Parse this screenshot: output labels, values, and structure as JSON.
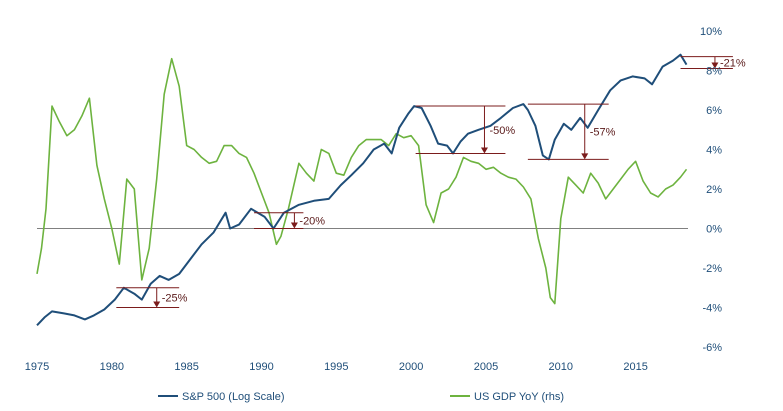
{
  "chart_data": {
    "type": "line",
    "x_range": [
      1975,
      2018.5
    ],
    "x_ticks": [
      "1975",
      "1980",
      "1985",
      "1990",
      "1995",
      "2000",
      "2005",
      "2010",
      "2015"
    ],
    "y2_label_suffix": "%",
    "y2_ticks": [
      "10%",
      "8%",
      "6%",
      "4%",
      "2%",
      "0%",
      "-2%",
      "-4%",
      "-6%"
    ],
    "y2_lim": [
      -6,
      10
    ],
    "colors": {
      "sp500": "#1f4e79",
      "gdp": "#6db33f",
      "annotation": "#7b1c1c",
      "zero": "#808080"
    },
    "series": [
      {
        "name": "S&P 500 (Log Scale)",
        "x": [
          1975.0,
          1975.5,
          1976.0,
          1976.8,
          1977.5,
          1978.2,
          1978.8,
          1979.5,
          1980.2,
          1980.8,
          1981.5,
          1982.0,
          1982.6,
          1983.2,
          1983.8,
          1984.5,
          1985.2,
          1986.0,
          1986.8,
          1987.6,
          1987.9,
          1988.5,
          1989.3,
          1990.2,
          1990.8,
          1991.5,
          1992.5,
          1993.5,
          1994.5,
          1995.3,
          1996.0,
          1996.8,
          1997.5,
          1998.2,
          1998.7,
          1999.2,
          1999.8,
          2000.2,
          2000.7,
          2001.3,
          2001.8,
          2002.4,
          2002.8,
          2003.3,
          2003.8,
          2004.5,
          2005.3,
          2006.0,
          2006.8,
          2007.5,
          2007.8,
          2008.3,
          2008.8,
          2009.2,
          2009.6,
          2010.2,
          2010.7,
          2011.3,
          2011.8,
          2012.5,
          2013.3,
          2014.0,
          2014.8,
          2015.6,
          2016.1,
          2016.8,
          2017.5,
          2018.0,
          2018.4
        ],
        "values": [
          -4.9,
          -4.5,
          -4.2,
          -4.3,
          -4.4,
          -4.6,
          -4.4,
          -4.1,
          -3.6,
          -3.0,
          -3.3,
          -3.6,
          -2.8,
          -2.4,
          -2.6,
          -2.3,
          -1.6,
          -0.8,
          -0.2,
          0.8,
          0.0,
          0.2,
          1.0,
          0.6,
          0.0,
          0.8,
          1.2,
          1.4,
          1.5,
          2.2,
          2.7,
          3.3,
          4.0,
          4.3,
          3.8,
          5.1,
          5.8,
          6.2,
          6.1,
          5.2,
          4.3,
          4.2,
          3.8,
          4.4,
          4.8,
          5.0,
          5.2,
          5.6,
          6.1,
          6.3,
          6.0,
          5.2,
          3.7,
          3.5,
          4.5,
          5.3,
          5.0,
          5.6,
          5.1,
          6.0,
          7.0,
          7.5,
          7.7,
          7.6,
          7.3,
          8.2,
          8.5,
          8.8,
          8.3
        ]
      },
      {
        "name": "US GDP YoY (rhs)",
        "x": [
          1975.0,
          1975.3,
          1975.6,
          1976.0,
          1976.5,
          1977.0,
          1977.5,
          1978.0,
          1978.5,
          1979.0,
          1979.5,
          1980.0,
          1980.5,
          1981.0,
          1981.5,
          1982.0,
          1982.5,
          1983.0,
          1983.5,
          1984.0,
          1984.5,
          1985.0,
          1985.5,
          1986.0,
          1986.5,
          1987.0,
          1987.5,
          1988.0,
          1988.5,
          1989.0,
          1989.5,
          1990.0,
          1990.5,
          1991.0,
          1991.3,
          1991.8,
          1992.5,
          1993.0,
          1993.5,
          1994.0,
          1994.5,
          1995.0,
          1995.5,
          1996.0,
          1996.5,
          1997.0,
          1997.5,
          1998.0,
          1998.5,
          1999.0,
          1999.5,
          2000.0,
          2000.5,
          2001.0,
          2001.5,
          2002.0,
          2002.5,
          2003.0,
          2003.5,
          2004.0,
          2004.5,
          2005.0,
          2005.5,
          2006.0,
          2006.5,
          2007.0,
          2007.5,
          2008.0,
          2008.5,
          2009.0,
          2009.3,
          2009.6,
          2010.0,
          2010.5,
          2011.0,
          2011.5,
          2012.0,
          2012.5,
          2013.0,
          2013.5,
          2014.0,
          2014.5,
          2015.0,
          2015.5,
          2016.0,
          2016.5,
          2017.0,
          2017.5,
          2018.0,
          2018.4
        ],
        "values": [
          -2.3,
          -1.0,
          1.0,
          6.2,
          5.4,
          4.7,
          5.0,
          5.7,
          6.6,
          3.2,
          1.5,
          0.0,
          -1.8,
          2.5,
          2.0,
          -2.6,
          -1.0,
          2.5,
          6.8,
          8.6,
          7.2,
          4.2,
          4.0,
          3.6,
          3.3,
          3.4,
          4.2,
          4.2,
          3.8,
          3.6,
          2.8,
          1.8,
          0.8,
          -0.8,
          -0.4,
          1.0,
          3.3,
          2.8,
          2.4,
          4.0,
          3.8,
          2.8,
          2.7,
          3.6,
          4.2,
          4.5,
          4.5,
          4.5,
          4.2,
          4.8,
          4.6,
          4.7,
          4.2,
          1.2,
          0.3,
          1.8,
          2.0,
          2.6,
          3.6,
          3.4,
          3.3,
          3.0,
          3.1,
          2.8,
          2.6,
          2.5,
          2.1,
          1.5,
          -0.5,
          -2.0,
          -3.5,
          -3.8,
          0.5,
          2.6,
          2.2,
          1.8,
          2.8,
          2.3,
          1.5,
          2.0,
          2.5,
          3.0,
          3.4,
          2.4,
          1.8,
          1.6,
          2.0,
          2.2,
          2.6,
          3.0
        ]
      }
    ],
    "drawdowns": [
      {
        "label": "-25%",
        "top": -3.0,
        "bottom": -4.0,
        "x_start": 1980.3,
        "x_end": 1984.5,
        "x_arrow": 1983.0
      },
      {
        "label": "-20%",
        "top": 0.8,
        "bottom": 0.0,
        "x_start": 1989.5,
        "x_end": 1992.8,
        "x_arrow": 1992.2
      },
      {
        "label": "-50%",
        "top": 6.2,
        "bottom": 3.8,
        "x_start": 2000.3,
        "x_end": 2006.3,
        "x_arrow": 2004.9
      },
      {
        "label": "-57%",
        "top": 6.3,
        "bottom": 3.5,
        "x_start": 2007.8,
        "x_end": 2013.2,
        "x_arrow": 2011.6
      },
      {
        "label": "-21%",
        "top": 8.7,
        "bottom": 8.1,
        "x_start": 2018.0,
        "x_end": 2021.5,
        "x_arrow": 2020.3
      }
    ],
    "legend": [
      {
        "label": "S&P 500 (Log Scale)",
        "key": "sp500"
      },
      {
        "label": "US GDP YoY (rhs)",
        "key": "gdp"
      }
    ],
    "legend_position": "bottom"
  }
}
